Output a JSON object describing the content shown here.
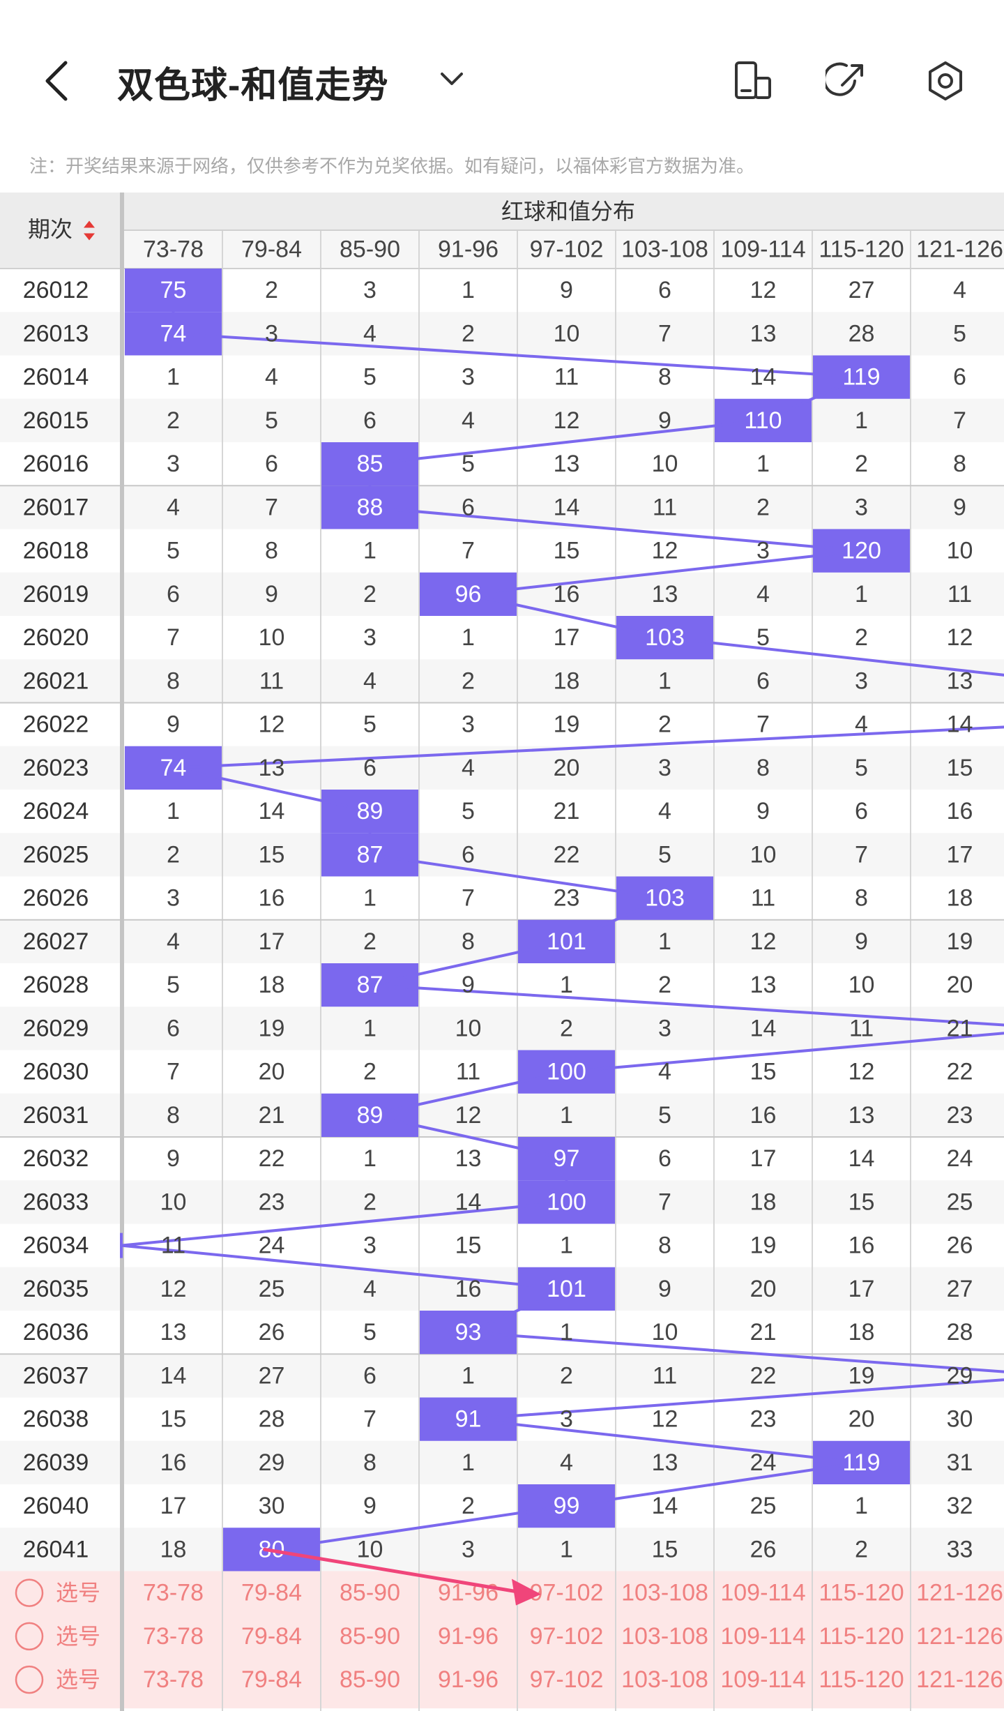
{
  "header": {
    "title": "双色球-和值走势",
    "back_icon": "chevron-left-icon",
    "dropdown_icon": "chevron-down-icon",
    "toolbar_icons": [
      "layout-toggle-icon",
      "share-icon",
      "settings-icon"
    ]
  },
  "note": "注：开奖结果来源于网络，仅供参考不作为兑奖依据。如有疑问，以福体彩官方数据为准。",
  "table": {
    "period_header": "期次",
    "group_header": "红球和值分布",
    "columns": [
      "73-78",
      "79-84",
      "85-90",
      "91-96",
      "97-102",
      "103-108",
      "109-114",
      "115-120",
      "121-126"
    ],
    "rows": [
      {
        "period": "26012",
        "cells": [
          "75",
          "2",
          "3",
          "1",
          "9",
          "6",
          "12",
          "27",
          "4"
        ],
        "hit": 0
      },
      {
        "period": "26013",
        "cells": [
          "74",
          "3",
          "4",
          "2",
          "10",
          "7",
          "13",
          "28",
          "5"
        ],
        "hit": 0
      },
      {
        "period": "26014",
        "cells": [
          "1",
          "4",
          "5",
          "3",
          "11",
          "8",
          "14",
          "119",
          "6"
        ],
        "hit": 7
      },
      {
        "period": "26015",
        "cells": [
          "2",
          "5",
          "6",
          "4",
          "12",
          "9",
          "110",
          "1",
          "7"
        ],
        "hit": 6
      },
      {
        "period": "26016",
        "cells": [
          "3",
          "6",
          "85",
          "5",
          "13",
          "10",
          "1",
          "2",
          "8"
        ],
        "hit": 2
      },
      {
        "period": "26017",
        "cells": [
          "4",
          "7",
          "88",
          "6",
          "14",
          "11",
          "2",
          "3",
          "9"
        ],
        "hit": 2
      },
      {
        "period": "26018",
        "cells": [
          "5",
          "8",
          "1",
          "7",
          "15",
          "12",
          "3",
          "120",
          "10"
        ],
        "hit": 7
      },
      {
        "period": "26019",
        "cells": [
          "6",
          "9",
          "2",
          "96",
          "16",
          "13",
          "4",
          "1",
          "11"
        ],
        "hit": 3
      },
      {
        "period": "26020",
        "cells": [
          "7",
          "10",
          "3",
          "1",
          "17",
          "103",
          "5",
          "2",
          "12"
        ],
        "hit": 5
      },
      {
        "period": "26021",
        "cells": [
          "8",
          "11",
          "4",
          "2",
          "18",
          "1",
          "6",
          "3",
          "13"
        ],
        "hit": 9
      },
      {
        "period": "26022",
        "cells": [
          "9",
          "12",
          "5",
          "3",
          "19",
          "2",
          "7",
          "4",
          "14"
        ],
        "hit": 9
      },
      {
        "period": "26023",
        "cells": [
          "74",
          "13",
          "6",
          "4",
          "20",
          "3",
          "8",
          "5",
          "15"
        ],
        "hit": 0
      },
      {
        "period": "26024",
        "cells": [
          "1",
          "14",
          "89",
          "5",
          "21",
          "4",
          "9",
          "6",
          "16"
        ],
        "hit": 2
      },
      {
        "period": "26025",
        "cells": [
          "2",
          "15",
          "87",
          "6",
          "22",
          "5",
          "10",
          "7",
          "17"
        ],
        "hit": 2
      },
      {
        "period": "26026",
        "cells": [
          "3",
          "16",
          "1",
          "7",
          "23",
          "103",
          "11",
          "8",
          "18"
        ],
        "hit": 5
      },
      {
        "period": "26027",
        "cells": [
          "4",
          "17",
          "2",
          "8",
          "101",
          "1",
          "12",
          "9",
          "19"
        ],
        "hit": 4
      },
      {
        "period": "26028",
        "cells": [
          "5",
          "18",
          "87",
          "9",
          "1",
          "2",
          "13",
          "10",
          "20"
        ],
        "hit": 2
      },
      {
        "period": "26029",
        "cells": [
          "6",
          "19",
          "1",
          "10",
          "2",
          "3",
          "14",
          "11",
          "21"
        ],
        "hit": 9
      },
      {
        "period": "26030",
        "cells": [
          "7",
          "20",
          "2",
          "11",
          "100",
          "4",
          "15",
          "12",
          "22"
        ],
        "hit": 4
      },
      {
        "period": "26031",
        "cells": [
          "8",
          "21",
          "89",
          "12",
          "1",
          "5",
          "16",
          "13",
          "23"
        ],
        "hit": 2
      },
      {
        "period": "26032",
        "cells": [
          "9",
          "22",
          "1",
          "13",
          "97",
          "6",
          "17",
          "14",
          "24"
        ],
        "hit": 4
      },
      {
        "period": "26033",
        "cells": [
          "10",
          "23",
          "2",
          "14",
          "100",
          "7",
          "18",
          "15",
          "25"
        ],
        "hit": 4
      },
      {
        "period": "26034",
        "cells": [
          "11",
          "24",
          "3",
          "15",
          "1",
          "8",
          "19",
          "16",
          "26"
        ],
        "hit": -1
      },
      {
        "period": "26035",
        "cells": [
          "12",
          "25",
          "4",
          "16",
          "101",
          "9",
          "20",
          "17",
          "27"
        ],
        "hit": 4
      },
      {
        "period": "26036",
        "cells": [
          "13",
          "26",
          "5",
          "93",
          "1",
          "10",
          "21",
          "18",
          "28"
        ],
        "hit": 3
      },
      {
        "period": "26037",
        "cells": [
          "14",
          "27",
          "6",
          "1",
          "2",
          "11",
          "22",
          "19",
          "29"
        ],
        "hit": 9
      },
      {
        "period": "26038",
        "cells": [
          "15",
          "28",
          "7",
          "91",
          "3",
          "12",
          "23",
          "20",
          "30"
        ],
        "hit": 3
      },
      {
        "period": "26039",
        "cells": [
          "16",
          "29",
          "8",
          "1",
          "4",
          "13",
          "24",
          "119",
          "31"
        ],
        "hit": 7
      },
      {
        "period": "26040",
        "cells": [
          "17",
          "30",
          "9",
          "2",
          "99",
          "14",
          "25",
          "1",
          "32"
        ],
        "hit": 4
      },
      {
        "period": "26041",
        "cells": [
          "18",
          "80",
          "10",
          "3",
          "1",
          "15",
          "26",
          "2",
          "33"
        ],
        "hit": 1
      }
    ],
    "select_rows": [
      {
        "label": "选号",
        "cells": [
          "73-78",
          "79-84",
          "85-90",
          "91-96",
          "97-102",
          "103-108",
          "109-114",
          "115-120",
          "121-126"
        ]
      },
      {
        "label": "选号",
        "cells": [
          "73-78",
          "79-84",
          "85-90",
          "91-96",
          "97-102",
          "103-108",
          "109-114",
          "115-120",
          "121-126"
        ]
      },
      {
        "label": "选号",
        "cells": [
          "73-78",
          "79-84",
          "85-90",
          "91-96",
          "97-102",
          "103-108",
          "109-114",
          "115-120",
          "121-126"
        ]
      }
    ]
  },
  "colors": {
    "hit": "#7b68ee",
    "line": "#7b68ee",
    "select_bg": "#fde7e7",
    "select_text": "#f08080",
    "arrow": "#f0457a"
  }
}
